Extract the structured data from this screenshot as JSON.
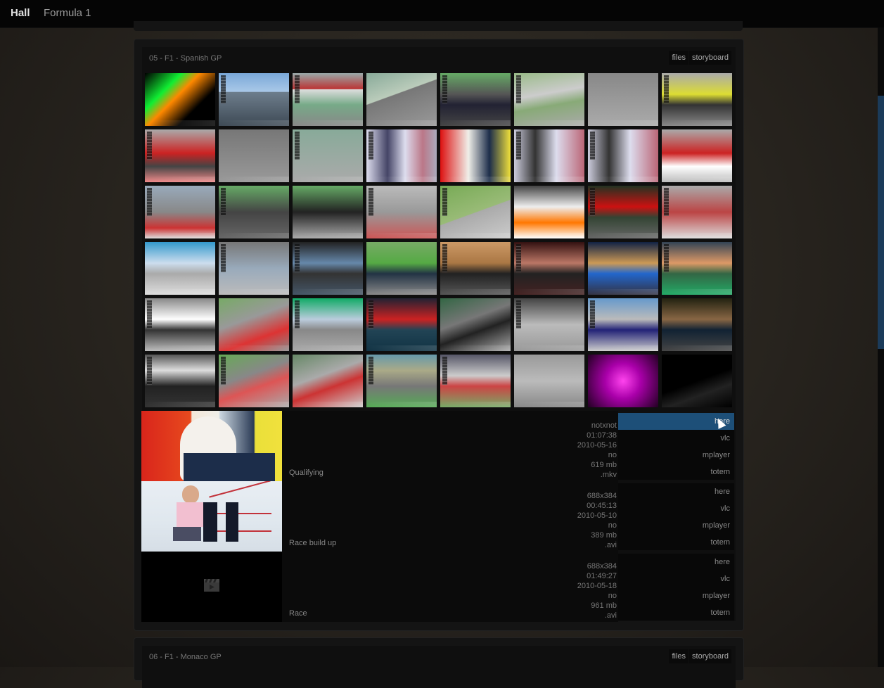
{
  "nav": {
    "brand": "Hall",
    "crumb": "Formula 1"
  },
  "panel1": {
    "title": "05 - F1 - Spanish GP",
    "links": [
      "files",
      "storyboard"
    ]
  },
  "files": [
    {
      "name": "Qualifying",
      "meta": [
        "notxnot",
        "01:07:38",
        "2010-05-16",
        "no",
        "619 mb",
        ".mkv"
      ],
      "actions": [
        "here",
        "vlc",
        "mplayer",
        "totem"
      ],
      "active_action": 0
    },
    {
      "name": "Race build up",
      "meta": [
        "688x384",
        "00:45:13",
        "2010-05-10",
        "no",
        "389 mb",
        ".avi"
      ],
      "actions": [
        "here",
        "vlc",
        "mplayer",
        "totem"
      ],
      "active_action": -1
    },
    {
      "name": "Race",
      "meta": [
        "688x384",
        "01:49:27",
        "2010-05-18",
        "no",
        "961 mb",
        ".avi"
      ],
      "actions": [
        "here",
        "vlc",
        "mplayer",
        "totem"
      ],
      "active_action": -1
    }
  ],
  "panel2": {
    "title": "06 - F1 - Monaco GP",
    "links": [
      "files",
      "storyboard"
    ]
  },
  "icons": {
    "placeholder": "clapperboard-icon"
  }
}
